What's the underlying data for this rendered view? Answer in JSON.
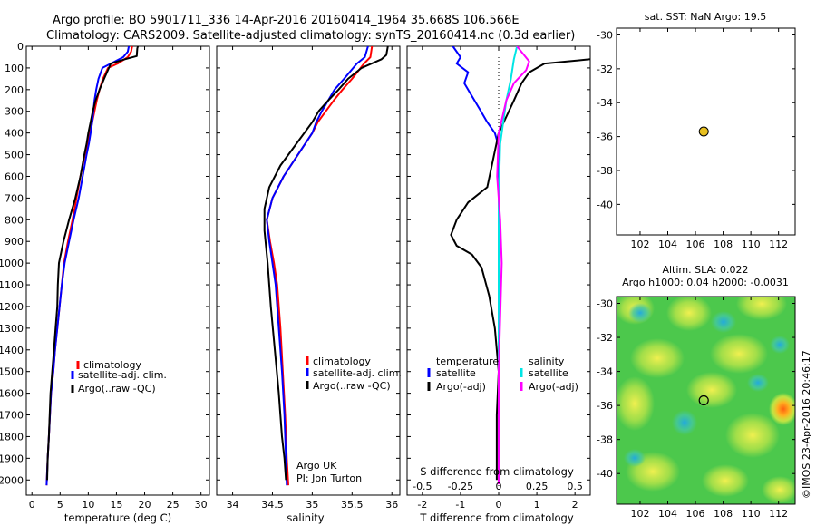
{
  "header": {
    "line1": "Argo profile: BO 5901711_336 14-Apr-2016 20160414_1964 35.668S 106.566E",
    "line2": "Climatology: CARS2009. Satellite-adjusted climatology: synTS_20160414.nc (0.3d earlier)"
  },
  "colors": {
    "climatology": "#ff0000",
    "satellite": "#0000ff",
    "argo": "#000000",
    "s_satellite": "#00e5e5",
    "s_argo": "#ff00ff",
    "marker": "#e8c020"
  },
  "chart_data": [
    {
      "id": "temperature",
      "type": "line",
      "xlabel": "temperature (deg C)",
      "xlim": [
        -1,
        31.5
      ],
      "xticks": [
        0,
        5,
        10,
        15,
        20,
        25,
        30
      ],
      "ylim": [
        0,
        2070
      ],
      "yticks": [
        0,
        100,
        200,
        300,
        400,
        500,
        600,
        700,
        800,
        900,
        1000,
        1100,
        1200,
        1300,
        1400,
        1500,
        1600,
        1700,
        1800,
        1900,
        2000
      ],
      "legend": [
        "climatology",
        "satellite-adj. clim.",
        "Argo(..raw -QC)"
      ],
      "series": [
        {
          "name": "climatology",
          "x": [
            17.8,
            17.6,
            17.0,
            15.2,
            13.5,
            12.6,
            12.0,
            11.5,
            11.1,
            10.7,
            10.3,
            9.9,
            9.4,
            8.6,
            7.9,
            7.2,
            6.4,
            5.7,
            5.3,
            4.9,
            4.5,
            4.1,
            3.8,
            3.4,
            3.0,
            2.8,
            2.6
          ],
          "y": [
            0,
            25,
            50,
            80,
            100,
            150,
            200,
            250,
            300,
            350,
            400,
            450,
            500,
            600,
            700,
            800,
            900,
            1000,
            1100,
            1200,
            1300,
            1400,
            1500,
            1600,
            1800,
            1900,
            2025
          ]
        },
        {
          "name": "satellite-adj. clim.",
          "x": [
            17.2,
            17.0,
            16.2,
            14.0,
            12.5,
            11.8,
            11.4,
            11.1,
            10.9,
            10.7,
            10.4,
            10.1,
            9.7,
            9.0,
            8.3,
            7.4,
            6.6,
            5.8,
            5.3,
            4.9,
            4.5,
            4.1,
            3.8,
            3.4,
            3.0,
            2.8,
            2.6
          ],
          "y": [
            0,
            25,
            50,
            80,
            100,
            150,
            200,
            250,
            300,
            350,
            400,
            450,
            500,
            600,
            700,
            800,
            900,
            1000,
            1100,
            1200,
            1300,
            1400,
            1500,
            1600,
            1800,
            1900,
            2025
          ]
        },
        {
          "name": "Argo(..raw -QC)",
          "x": [
            18.8,
            18.7,
            18.6,
            16.5,
            14.0,
            12.8,
            12.0,
            11.3,
            10.8,
            10.4,
            10.0,
            9.7,
            9.3,
            8.6,
            7.7,
            6.6,
            5.6,
            4.8,
            4.6,
            4.5,
            4.2,
            3.9,
            3.6,
            3.3,
            3.0,
            2.8,
            2.7
          ],
          "y": [
            0,
            10,
            45,
            60,
            80,
            150,
            200,
            250,
            300,
            350,
            400,
            450,
            500,
            600,
            700,
            800,
            900,
            1000,
            1100,
            1200,
            1300,
            1400,
            1500,
            1600,
            1800,
            1900,
            2000
          ]
        }
      ]
    },
    {
      "id": "salinity",
      "type": "line",
      "xlabel": "salinity",
      "xlim": [
        33.8,
        36.1
      ],
      "xticks": [
        34,
        34.5,
        35,
        35.5,
        36
      ],
      "ylim": [
        0,
        2070
      ],
      "legend": [
        "climatology",
        "satellite-adj. clim.",
        "Argo(..raw -QC)"
      ],
      "annotations": [
        "Argo UK",
        "PI: Jon Turton"
      ],
      "series": [
        {
          "name": "climatology",
          "x": [
            35.75,
            35.73,
            35.65,
            35.5,
            35.38,
            35.27,
            35.17,
            35.07,
            35.0,
            34.82,
            34.64,
            34.5,
            34.43,
            34.47,
            34.52,
            34.56,
            34.6,
            34.63,
            34.66,
            34.68,
            34.7
          ],
          "y": [
            0,
            50,
            80,
            150,
            200,
            250,
            300,
            350,
            400,
            500,
            600,
            700,
            800,
            900,
            1000,
            1100,
            1300,
            1500,
            1700,
            1900,
            2025
          ]
        },
        {
          "name": "satellite-adj. clim.",
          "x": [
            35.7,
            35.66,
            35.56,
            35.4,
            35.28,
            35.2,
            35.12,
            35.05,
            35.0,
            34.82,
            34.64,
            34.5,
            34.43,
            34.46,
            34.5,
            34.54,
            34.58,
            34.62,
            34.65,
            34.67,
            34.68
          ],
          "y": [
            0,
            50,
            80,
            150,
            200,
            250,
            300,
            350,
            400,
            500,
            600,
            700,
            800,
            900,
            1000,
            1100,
            1300,
            1500,
            1700,
            1900,
            2025
          ]
        },
        {
          "name": "Argo(..raw -QC)",
          "x": [
            35.95,
            35.93,
            35.87,
            35.62,
            35.45,
            35.33,
            35.2,
            35.08,
            35.0,
            34.8,
            34.6,
            34.46,
            34.4,
            34.4,
            34.44,
            34.48,
            34.53,
            34.58,
            34.62,
            34.65,
            34.67
          ],
          "y": [
            0,
            40,
            60,
            100,
            150,
            200,
            250,
            300,
            350,
            450,
            550,
            650,
            750,
            850,
            1000,
            1200,
            1400,
            1600,
            1800,
            1900,
            2000
          ]
        }
      ]
    },
    {
      "id": "differences",
      "type": "line",
      "xlabel": "T difference from climatology",
      "xlabel_top": "S difference from climatology",
      "xlim": [
        -2.4,
        2.4
      ],
      "xticks": [
        -2,
        -1,
        0,
        1,
        2
      ],
      "xticklabels_top": [
        "-0.5",
        "-0.25",
        "0",
        "0.25",
        "0.5"
      ],
      "ylim": [
        0,
        2070
      ],
      "legend": {
        "temperature_title": "temperature",
        "salinity_title": "salinity",
        "items": [
          "satellite",
          "Argo(-adj)",
          "satellite",
          "Argo(-adj)"
        ]
      },
      "series": [
        {
          "name": "T satellite",
          "x": [
            -1.2,
            -1.0,
            -1.1,
            -0.8,
            -0.9,
            -0.7,
            -0.5,
            -0.3,
            -0.1,
            0.0,
            0.0,
            0.0,
            0.0,
            0.0
          ],
          "y": [
            0,
            50,
            80,
            120,
            170,
            230,
            290,
            350,
            400,
            460,
            700,
            1200,
            1700,
            2020
          ]
        },
        {
          "name": "T Argo(-adj)",
          "x": [
            2.4,
            1.2,
            0.8,
            0.6,
            0.4,
            0.0,
            -0.3,
            -0.8,
            -1.1,
            -1.25,
            -1.1,
            -0.7,
            -0.45,
            -0.25,
            -0.1,
            0.0,
            -0.05,
            -0.05
          ],
          "y": [
            60,
            80,
            120,
            170,
            250,
            400,
            650,
            720,
            800,
            870,
            920,
            960,
            1020,
            1150,
            1300,
            1500,
            1700,
            2000
          ]
        },
        {
          "name": "S satellite",
          "x": [
            0.12,
            0.1,
            0.08,
            0.05,
            0.03,
            0.01,
            0.0,
            0.0,
            0.0
          ],
          "y": [
            0,
            60,
            150,
            250,
            350,
            450,
            700,
            1300,
            2020
          ]
        },
        {
          "name": "S Argo(-adj)",
          "x": [
            0.12,
            0.2,
            0.18,
            0.1,
            0.05,
            0.0,
            -0.01,
            0.01,
            0.02,
            0.0,
            0.0
          ],
          "y": [
            0,
            70,
            110,
            170,
            250,
            400,
            600,
            800,
            1000,
            1500,
            2020
          ]
        }
      ]
    },
    {
      "id": "sst_map",
      "type": "scatter",
      "title": "sat. SST: NaN Argo: 19.5",
      "xlim": [
        100.3,
        113.2
      ],
      "xticks": [
        102,
        104,
        106,
        108,
        110,
        112
      ],
      "ylim": [
        -41.8,
        -29.6
      ],
      "yticks": [
        -30,
        -32,
        -34,
        -36,
        -38,
        -40
      ],
      "points": [
        {
          "x": 106.6,
          "y": -35.7
        }
      ]
    },
    {
      "id": "sla_map",
      "type": "heatmap",
      "title_line1": "Altim. SLA: 0.022",
      "title_line2": "Argo h1000: 0.04 h2000: -0.0031",
      "xlim": [
        100.3,
        113.2
      ],
      "xticks": [
        102,
        104,
        106,
        108,
        110,
        112
      ],
      "ylim": [
        -41.8,
        -29.6
      ],
      "yticks": [
        -30,
        -32,
        -34,
        -36,
        -38,
        -40
      ],
      "points": [
        {
          "x": 106.6,
          "y": -35.7
        }
      ]
    }
  ],
  "credit": "©IMOS 23-Apr-2016 20:46:17"
}
